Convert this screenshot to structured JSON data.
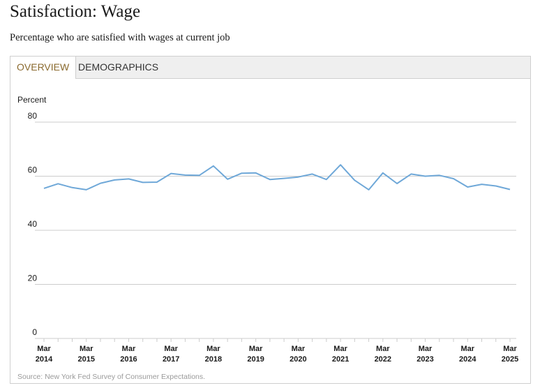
{
  "header": {
    "title": "Satisfaction: Wage",
    "subtitle": "Percentage who are satisfied with wages at current job"
  },
  "tabs": [
    {
      "label": "OVERVIEW",
      "active": true
    },
    {
      "label": "DEMOGRAPHICS",
      "active": false
    }
  ],
  "footer": {
    "source": "Source: New York Fed Survey of Consumer Expectations."
  },
  "colors": {
    "line": "#6fa8d8",
    "grid": "#cccccc",
    "active_tab": "#8a6a2e"
  },
  "chart_data": {
    "type": "line",
    "title": "",
    "ylabel": "Percent",
    "xlabel": "",
    "ylim": [
      0,
      80
    ],
    "yticks": [
      0,
      20,
      40,
      60,
      80
    ],
    "grid": true,
    "xtick_labels": [
      {
        "month": "Mar",
        "year": "2014"
      },
      {
        "month": "Mar",
        "year": "2015"
      },
      {
        "month": "Mar",
        "year": "2016"
      },
      {
        "month": "Mar",
        "year": "2017"
      },
      {
        "month": "Mar",
        "year": "2018"
      },
      {
        "month": "Mar",
        "year": "2019"
      },
      {
        "month": "Mar",
        "year": "2020"
      },
      {
        "month": "Mar",
        "year": "2021"
      },
      {
        "month": "Mar",
        "year": "2022"
      },
      {
        "month": "Mar",
        "year": "2023"
      },
      {
        "month": "Mar",
        "year": "2024"
      },
      {
        "month": "Mar",
        "year": "2025"
      }
    ],
    "series": [
      {
        "x": [
          "2014-03",
          "2014-07",
          "2014-11",
          "2015-03",
          "2015-07",
          "2015-11",
          "2016-03",
          "2016-07",
          "2016-11",
          "2017-03",
          "2017-07",
          "2017-11",
          "2018-03",
          "2018-07",
          "2018-11",
          "2019-03",
          "2019-07",
          "2019-11",
          "2020-03",
          "2020-07",
          "2020-11",
          "2021-03",
          "2021-07",
          "2021-11",
          "2022-03",
          "2022-07",
          "2022-11",
          "2023-03",
          "2023-07",
          "2023-11",
          "2024-03",
          "2024-07",
          "2024-11",
          "2025-03"
        ],
        "values": [
          55.5,
          57.2,
          55.8,
          55.0,
          57.4,
          58.6,
          59.0,
          57.7,
          57.8,
          61.0,
          60.4,
          60.3,
          63.8,
          58.9,
          61.1,
          61.2,
          58.8,
          59.2,
          59.7,
          60.8,
          58.8,
          64.2,
          58.5,
          55.0,
          61.2,
          57.3,
          60.8,
          60.0,
          60.3,
          59.1,
          56.0,
          57.0,
          56.4,
          55.1
        ]
      }
    ]
  }
}
